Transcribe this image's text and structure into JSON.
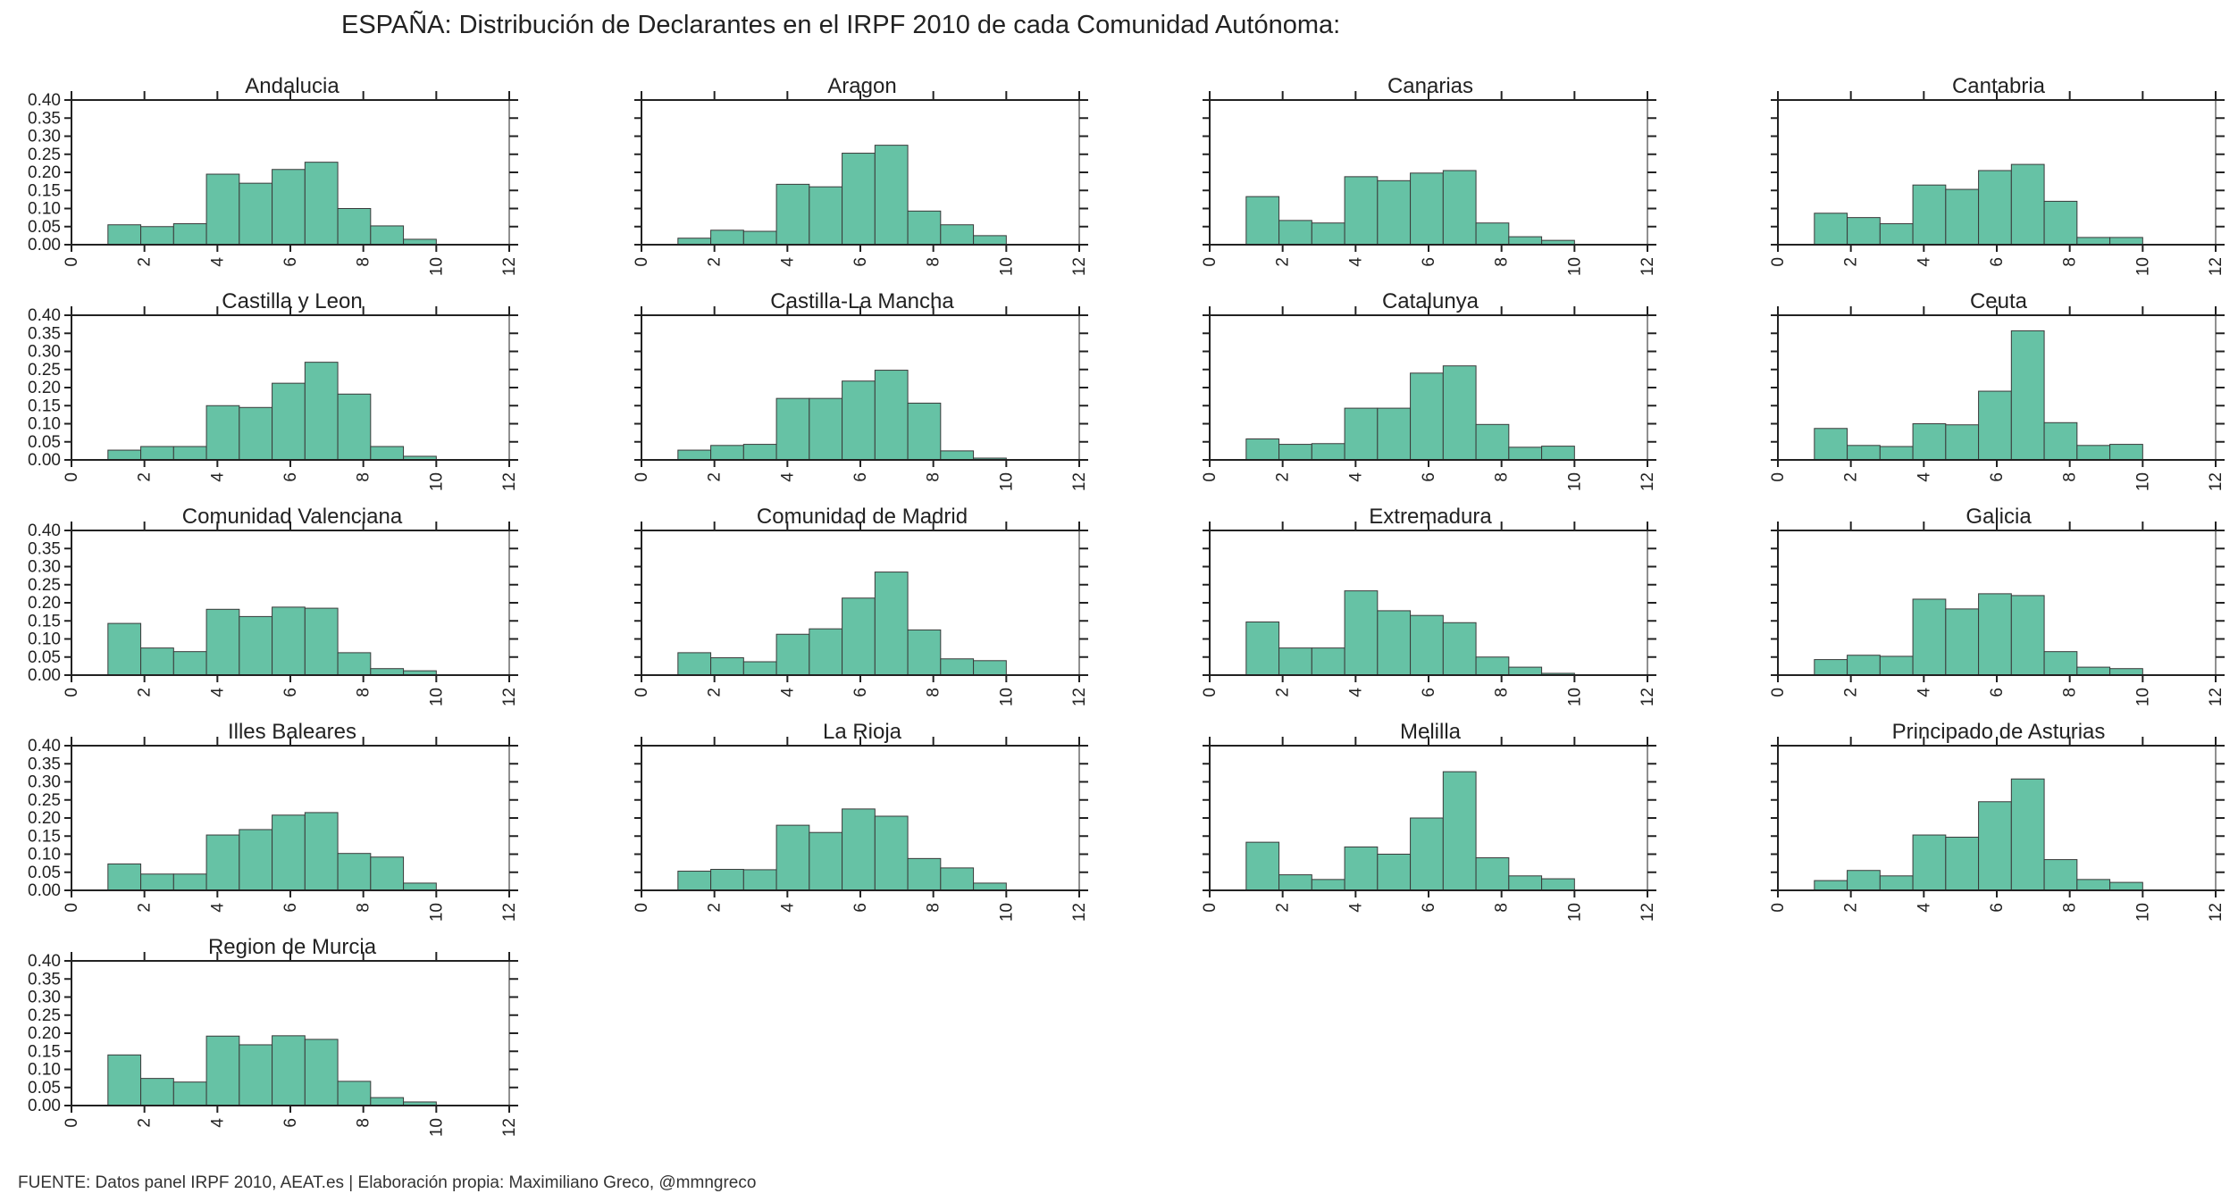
{
  "title": "ESPAÑA: Distribución de Declarantes en el IRPF 2010 de cada Comunidad Autónoma:",
  "source": "FUENTE: Datos panel IRPF 2010, AEAT.es | Elaboración propia: Maximiliano Greco, @mmngreco",
  "colors": {
    "bar": "#66c2a5",
    "bar_edge": "#3a3a3a",
    "axis": "#222222"
  },
  "chart_data": {
    "type": "bar",
    "layout": "small multiples, 5 rows x 4 columns, shared axes",
    "xlim": [
      0,
      12
    ],
    "ylim": [
      0,
      0.4
    ],
    "xticks": [
      "0",
      "2",
      "4",
      "6",
      "8",
      "10",
      "12"
    ],
    "yticks": [
      "0.00",
      "0.05",
      "0.10",
      "0.15",
      "0.20",
      "0.25",
      "0.30",
      "0.35",
      "0.40"
    ],
    "bin_edges": [
      1,
      1.9,
      2.8,
      3.7,
      4.6,
      5.5,
      6.4,
      7.3,
      8.2,
      9.1,
      10
    ],
    "grid": false,
    "panels": [
      {
        "title": "Andalucia",
        "values": [
          0.055,
          0.05,
          0.058,
          0.195,
          0.17,
          0.208,
          0.228,
          0.1,
          0.052,
          0.015
        ]
      },
      {
        "title": "Aragon",
        "values": [
          0.018,
          0.04,
          0.037,
          0.167,
          0.16,
          0.253,
          0.275,
          0.093,
          0.055,
          0.025
        ]
      },
      {
        "title": "Canarias",
        "values": [
          0.133,
          0.067,
          0.06,
          0.188,
          0.177,
          0.198,
          0.205,
          0.06,
          0.022,
          0.012
        ]
      },
      {
        "title": "Cantabria",
        "values": [
          0.087,
          0.075,
          0.058,
          0.165,
          0.153,
          0.205,
          0.222,
          0.12,
          0.02,
          0.02
        ]
      },
      {
        "title": "Castilla y Leon",
        "values": [
          0.027,
          0.037,
          0.037,
          0.15,
          0.145,
          0.212,
          0.27,
          0.182,
          0.037,
          0.01
        ]
      },
      {
        "title": "Castilla-La Mancha",
        "values": [
          0.027,
          0.04,
          0.043,
          0.17,
          0.17,
          0.218,
          0.248,
          0.157,
          0.025,
          0.005
        ]
      },
      {
        "title": "Catalunya",
        "values": [
          0.058,
          0.043,
          0.045,
          0.143,
          0.143,
          0.24,
          0.26,
          0.098,
          0.035,
          0.038
        ]
      },
      {
        "title": "Ceuta",
        "values": [
          0.087,
          0.04,
          0.037,
          0.1,
          0.097,
          0.19,
          0.357,
          0.103,
          0.04,
          0.043
        ]
      },
      {
        "title": "Comunidad Valenciana",
        "values": [
          0.143,
          0.075,
          0.065,
          0.182,
          0.162,
          0.188,
          0.185,
          0.062,
          0.018,
          0.012
        ]
      },
      {
        "title": "Comunidad de Madrid",
        "values": [
          0.062,
          0.048,
          0.037,
          0.113,
          0.128,
          0.213,
          0.285,
          0.125,
          0.045,
          0.04
        ]
      },
      {
        "title": "Extremadura",
        "values": [
          0.147,
          0.075,
          0.075,
          0.233,
          0.178,
          0.165,
          0.145,
          0.05,
          0.022,
          0.005
        ]
      },
      {
        "title": "Galicia",
        "values": [
          0.043,
          0.055,
          0.052,
          0.21,
          0.183,
          0.225,
          0.22,
          0.065,
          0.022,
          0.018
        ]
      },
      {
        "title": "Illes Baleares",
        "values": [
          0.073,
          0.045,
          0.045,
          0.153,
          0.168,
          0.208,
          0.215,
          0.102,
          0.092,
          0.02
        ]
      },
      {
        "title": "La Rioja",
        "values": [
          0.053,
          0.058,
          0.057,
          0.18,
          0.16,
          0.225,
          0.205,
          0.088,
          0.062,
          0.02
        ]
      },
      {
        "title": "Melilla",
        "values": [
          0.133,
          0.043,
          0.03,
          0.12,
          0.1,
          0.2,
          0.328,
          0.09,
          0.04,
          0.032
        ]
      },
      {
        "title": "Principado de Asturias",
        "values": [
          0.027,
          0.055,
          0.04,
          0.153,
          0.147,
          0.245,
          0.308,
          0.085,
          0.03,
          0.022
        ]
      },
      {
        "title": "Region de Murcia",
        "values": [
          0.14,
          0.075,
          0.065,
          0.192,
          0.168,
          0.193,
          0.183,
          0.067,
          0.022,
          0.01
        ]
      }
    ]
  }
}
